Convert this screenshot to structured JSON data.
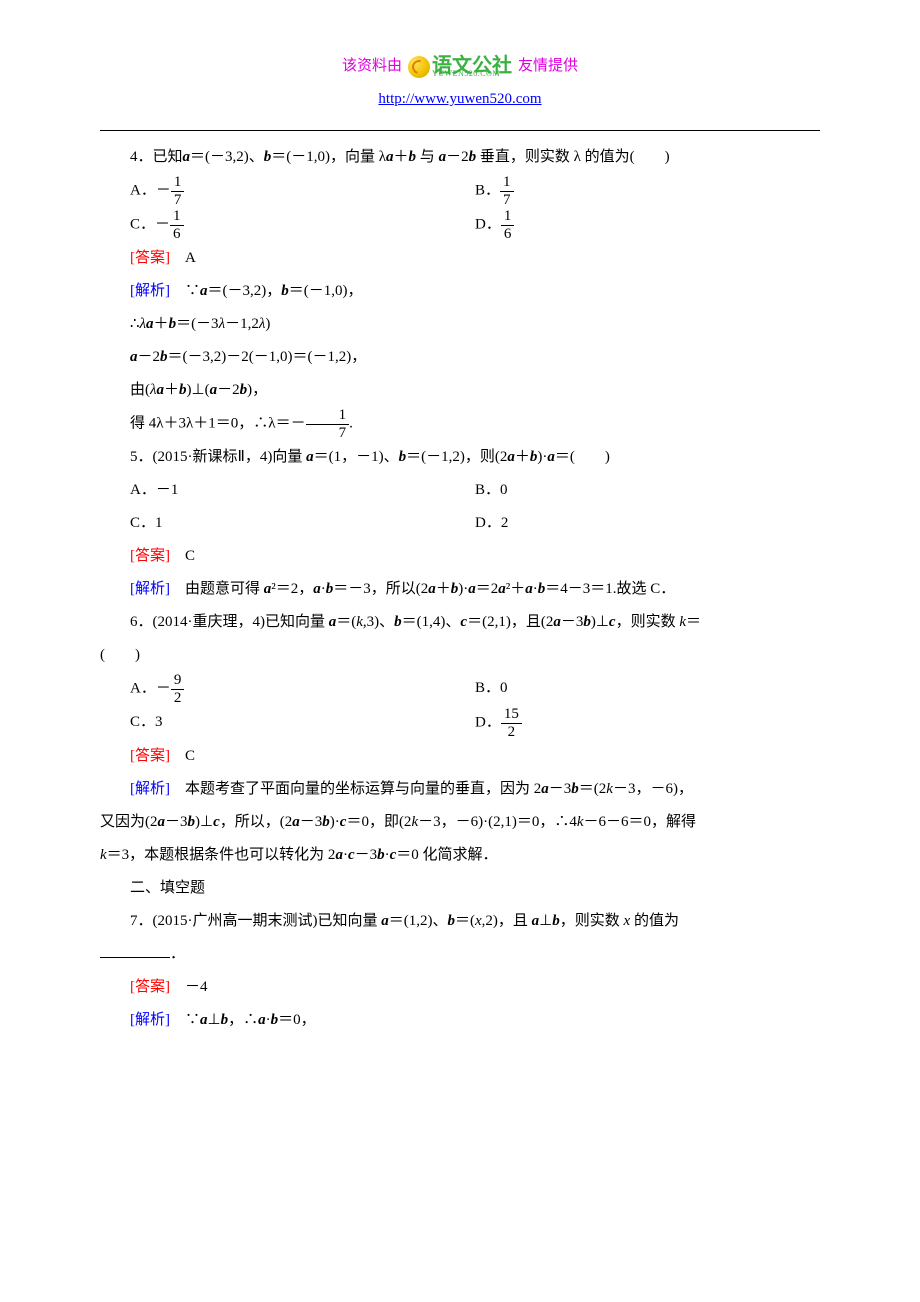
{
  "header": {
    "prefix": "该资料由",
    "brand_name": "语文公社",
    "brand_sub": "YUWEN520.COM",
    "suffix": "友情提供",
    "url": "http://www.yuwen520.com",
    "colors": {
      "magenta": "#e000e0",
      "brand_green": "#3cb043",
      "url_blue": "#0000ff"
    }
  },
  "q4": {
    "stem_prefix": "4．已知",
    "stem_a": "a",
    "stem_mid1": "＝(－3,2)、",
    "stem_b": "b",
    "stem_mid2": "＝(－1,0)，向量 λ",
    "stem_mid3": "＋",
    "stem_mid4": " 与 ",
    "stem_mid5": "－2",
    "stem_end": " 垂直，则实数 λ 的值为(　　)",
    "optA_label": "A．－",
    "optA_num": "1",
    "optA_den": "7",
    "optB_label": "B．",
    "optB_num": "1",
    "optB_den": "7",
    "optC_label": "C．－",
    "optC_num": "1",
    "optC_den": "6",
    "optD_label": "D．",
    "optD_num": "1",
    "optD_den": "6",
    "answer_label": "[答案]",
    "answer": "A",
    "analysis_label": "[解析]",
    "ana1": "∵a＝(－3,2)，b＝(－1,0)，",
    "ana2": "∴λa＋b＝(－3λ－1,2λ)",
    "ana3": "a－2b＝(－3,2)－2(－1,0)＝(－1,2)，",
    "ana4": "由(λa＋b)⊥(a－2b)，",
    "ana5_pre": "得 4λ＋3λ＋1＝0，∴λ＝－",
    "ana5_num": "1",
    "ana5_den": "7",
    "ana5_end": "."
  },
  "q5": {
    "stem": "5．(2015·新课标Ⅱ，4)向量 a＝(1，－1)、b＝(－1,2)，则(2a＋b)·a＝(　　)",
    "optA": "A．－1",
    "optB": "B．0",
    "optC": "C．1",
    "optD": "D．2",
    "answer_label": "[答案]",
    "answer": "C",
    "analysis_label": "[解析]",
    "ana": "由题意可得 a²＝2，a·b＝－3，所以(2a＋b)·a＝2a²＋a·b＝4－3＝1.故选 C．"
  },
  "q6": {
    "stem": "6．(2014·重庆理，4)已知向量 a＝(k,3)、b＝(1,4)、c＝(2,1)，且(2a－3b)⊥c，则实数 k＝",
    "stem_tail": "(　　)",
    "optA_label": "A．－",
    "optA_num": "9",
    "optA_den": "2",
    "optB": "B．0",
    "optC": "C．3",
    "optD_label": "D．",
    "optD_num": "15",
    "optD_den": "2",
    "answer_label": "[答案]",
    "answer": "C",
    "analysis_label": "[解析]",
    "ana1": "本题考查了平面向量的坐标运算与向量的垂直，因为 2a－3b＝(2k－3，－6)，",
    "ana2": "又因为(2a－3b)⊥c，所以，(2a－3b)·c＝0，即(2k－3，－6)·(2,1)＝0，∴4k－6－6＝0，解得",
    "ana3": "k＝3，本题根据条件也可以转化为 2a·c－3b·c＝0 化简求解．"
  },
  "section2": "二、填空题",
  "q7": {
    "stem": "7．(2015·广州高一期末测试)已知向量 a＝(1,2)、b＝(x,2)，且 a⊥b，则实数 x 的值为",
    "answer_label": "[答案]",
    "answer": "－4",
    "analysis_label": "[解析]",
    "ana": "∵a⊥b，∴a·b＝0，"
  },
  "colors": {
    "answer_red": "#ff0000",
    "analysis_blue": "#0000ff",
    "text": "#000000",
    "background": "#ffffff"
  }
}
